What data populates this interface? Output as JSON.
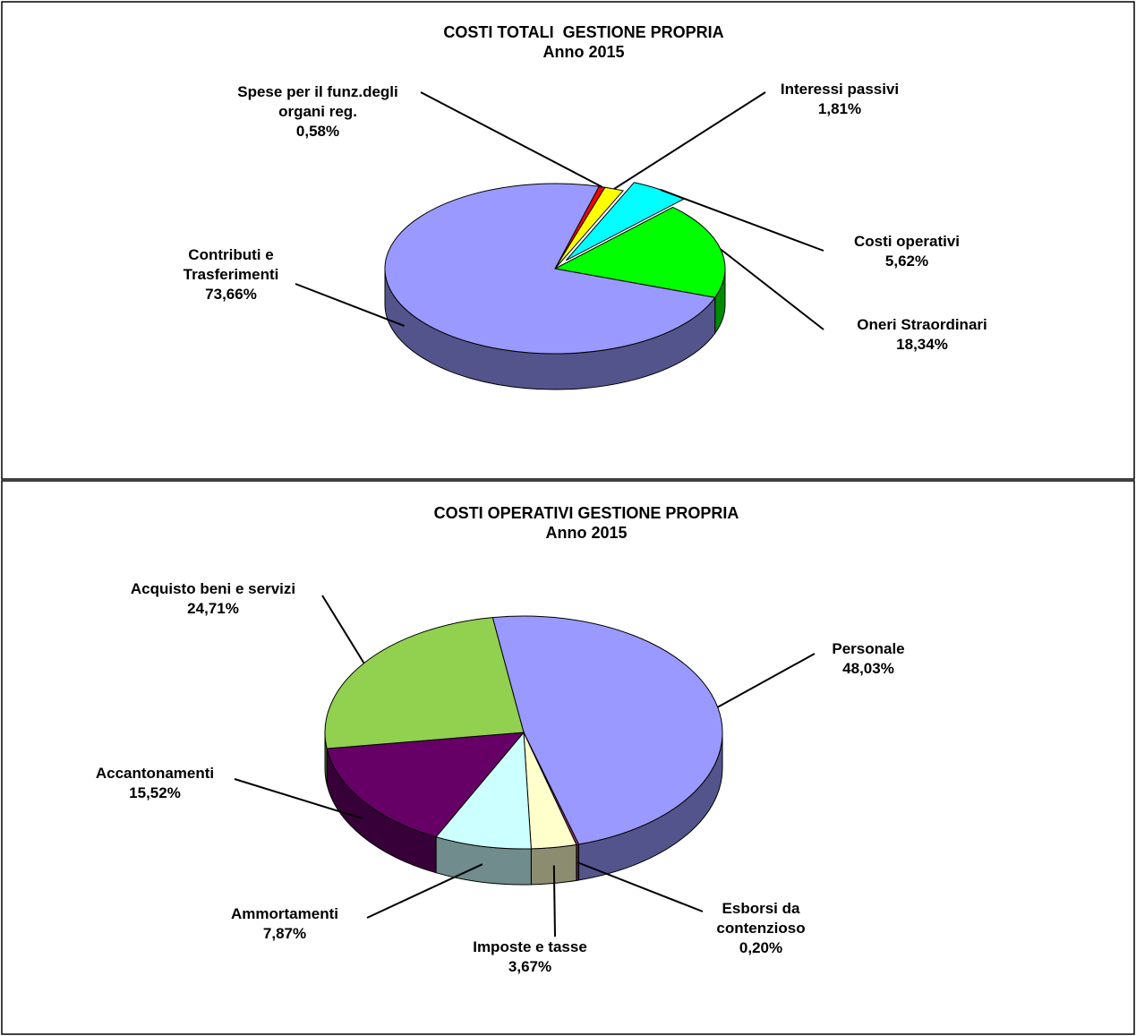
{
  "chart_data": [
    {
      "type": "pie3d",
      "title": "COSTI TOTALI  GESTIONE PROPRIA",
      "subtitle": "Anno 2015",
      "categories": [
        "Spese per il funz.degli\norgani reg.",
        "Interessi passivi",
        "Costi operativi",
        "Oneri Straordinari",
        "Contributi e\nTrasferimenti"
      ],
      "values": [
        0.58,
        1.81,
        5.62,
        18.34,
        73.66
      ],
      "value_labels": [
        "0,58%",
        "1,81%",
        "5,62%",
        "18,34%",
        "73,66%"
      ],
      "colors": [
        "#ff0000",
        "#ffff00",
        "#00ffff",
        "#00ff00",
        "#9999ff"
      ]
    },
    {
      "type": "pie3d",
      "title": "COSTI OPERATIVI GESTIONE PROPRIA",
      "subtitle": "Anno 2015",
      "categories": [
        "Personale",
        "Esborsi da\ncontenzioso",
        "Imposte e tasse",
        "Ammortamenti",
        "Accantonamenti",
        "Acquisto beni e servizi"
      ],
      "values": [
        48.03,
        0.2,
        3.67,
        7.87,
        15.52,
        24.71
      ],
      "value_labels": [
        "48,03%",
        "0,20%",
        "3,67%",
        "7,87%",
        "15,52%",
        "24,71%"
      ],
      "colors": [
        "#9999ff",
        "#993366",
        "#ffffcc",
        "#ccffff",
        "#660066",
        "#92d050"
      ]
    }
  ]
}
